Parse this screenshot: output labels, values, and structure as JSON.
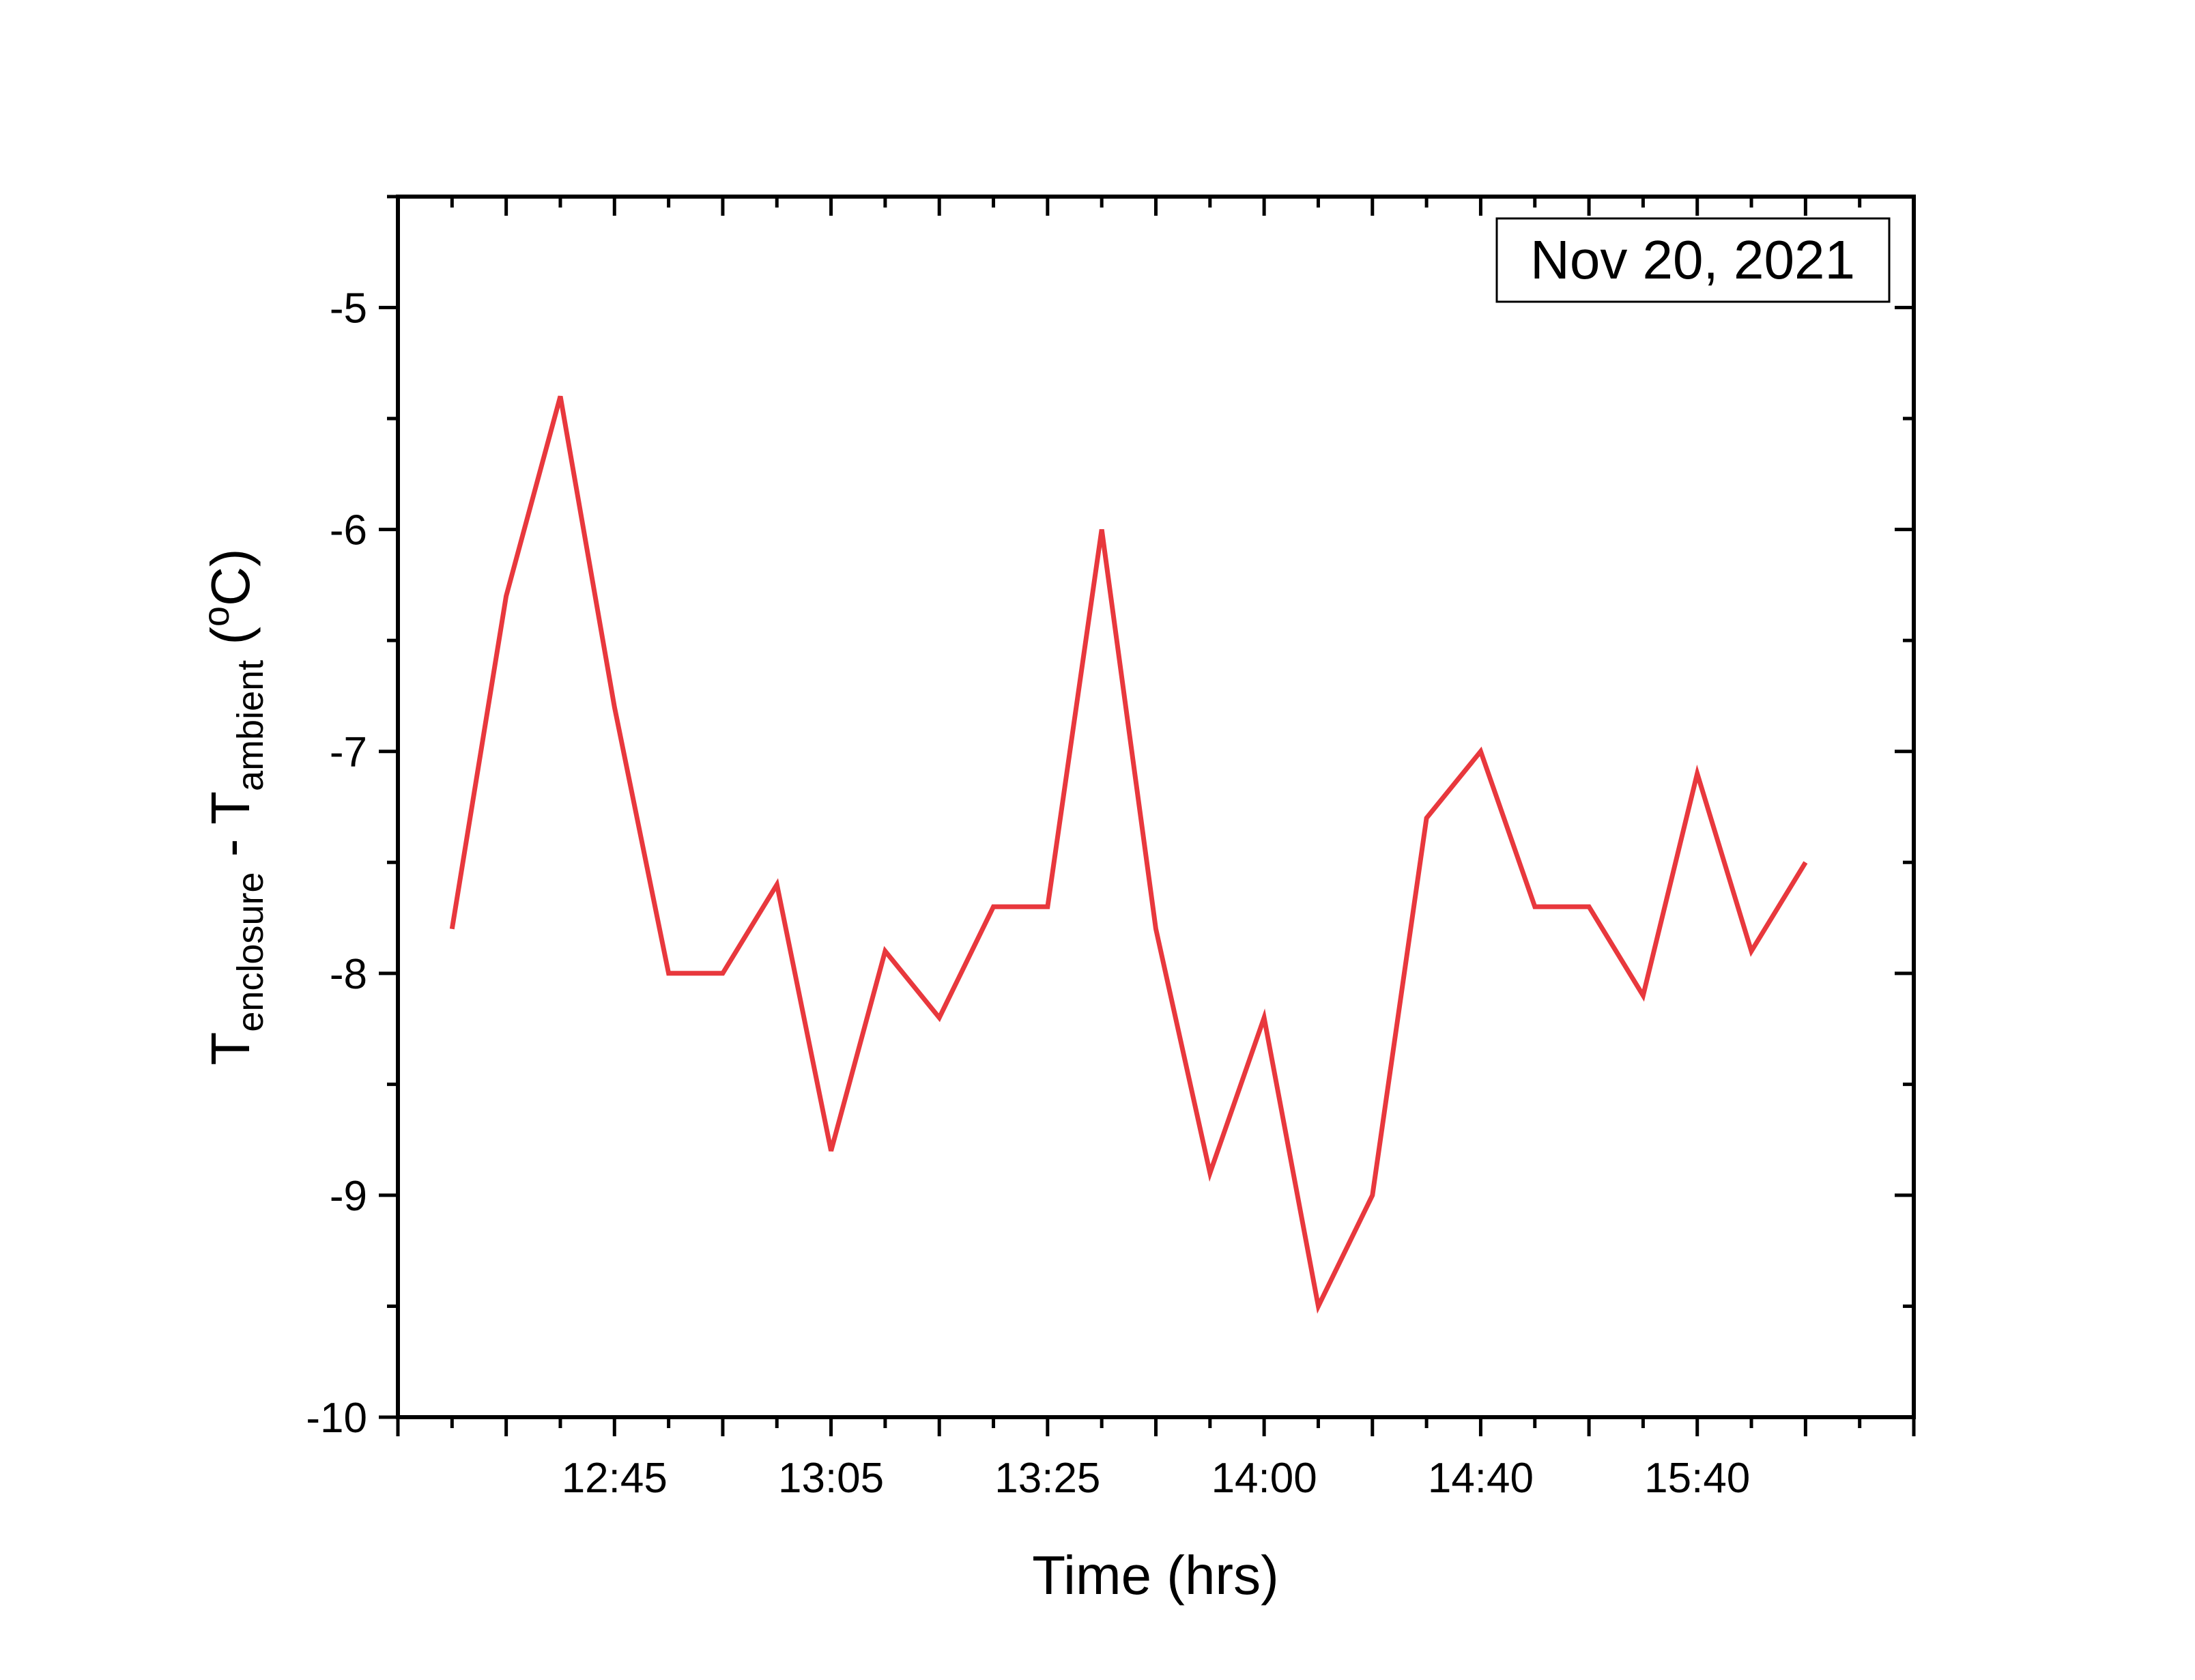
{
  "chart_data": {
    "type": "line",
    "annotation": "Nov 20, 2021",
    "xlabel": "Time (hrs)",
    "ylabel": {
      "main1": "T",
      "sub1": "enclosure",
      "mid": " - T",
      "sub2": "ambient",
      "unit_pre": " (",
      "unit_sup": "o",
      "unit_post": "C)"
    },
    "ylim": [
      -10,
      -4.5
    ],
    "yticks": [
      -10,
      -9,
      -8,
      -7,
      -6,
      -5
    ],
    "yticklabels": [
      "-10",
      "-9",
      "-8",
      "-7",
      "-6",
      "-5"
    ],
    "xticklabels": [
      "12:45",
      "13:05",
      "13:25",
      "14:00",
      "14:40",
      "15:40"
    ],
    "xticklabel_positions": [
      4,
      8,
      12,
      16,
      20,
      24
    ],
    "xlim": [
      0,
      28
    ],
    "grid": false,
    "line_color": "#e8383d",
    "series": [
      {
        "x": [
          1,
          2,
          3,
          4,
          5,
          6,
          7,
          8,
          9,
          10,
          11,
          12,
          13,
          14,
          15,
          16,
          17,
          18,
          19,
          20,
          21,
          22,
          23,
          24,
          25,
          26
        ],
        "values": [
          -7.8,
          -6.3,
          -5.4,
          -6.8,
          -8.0,
          -8.0,
          -7.6,
          -8.8,
          -7.9,
          -8.2,
          -7.7,
          -7.7,
          -6.0,
          -7.8,
          -8.9,
          -8.2,
          -9.5,
          -9.0,
          -7.3,
          -7.0,
          -7.7,
          -7.7,
          -8.1,
          -7.1,
          -7.9,
          -7.5
        ]
      }
    ]
  }
}
